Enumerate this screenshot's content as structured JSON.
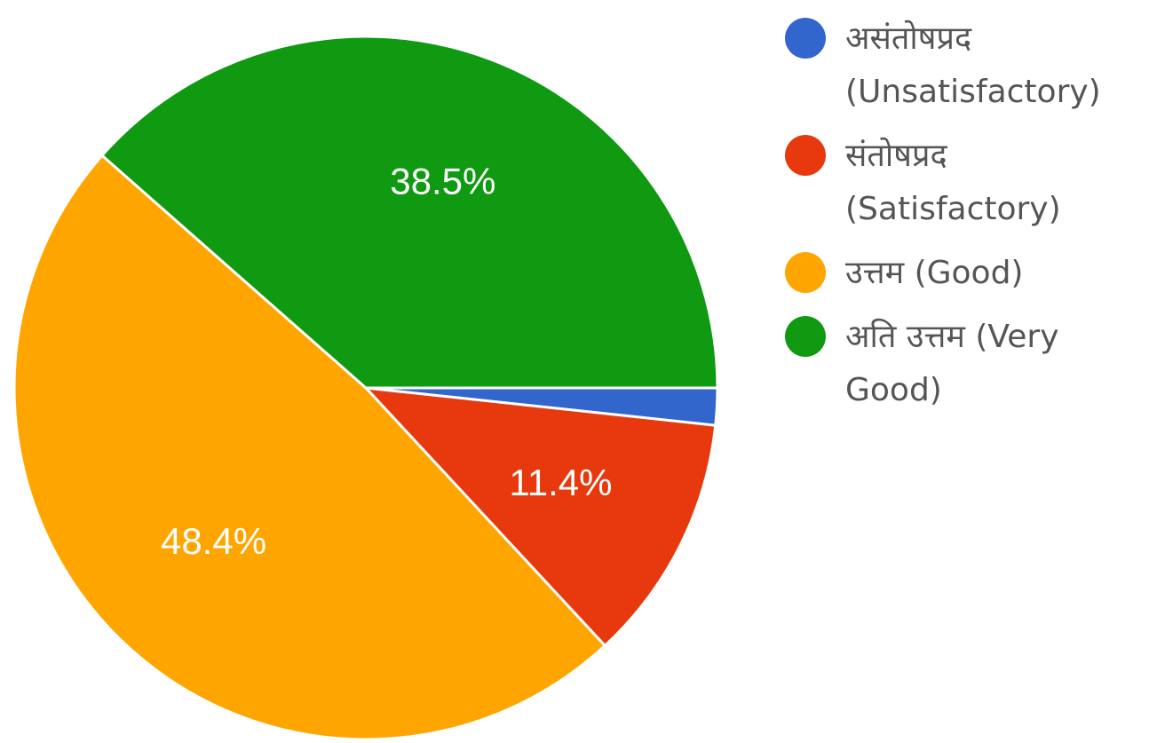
{
  "chart_data": {
    "type": "pie",
    "slices": [
      {
        "label": "असंतोषप्रद (Unsatisfactory)",
        "value": 1.7,
        "color": "#3366cc",
        "display": ""
      },
      {
        "label": "संतोषप्रद (Satisfactory)",
        "value": 11.4,
        "color": "#e8380d",
        "display": "11.4%"
      },
      {
        "label": "उत्तम (Good)",
        "value": 48.4,
        "color": "#ffa500",
        "display": "48.4%"
      },
      {
        "label": "अति उत्तम (Very Good)",
        "value": 38.5,
        "color": "#0f9a12",
        "display": "38.5%"
      }
    ],
    "legend_position": "right",
    "start": "3 o'clock",
    "direction": "clockwise"
  }
}
